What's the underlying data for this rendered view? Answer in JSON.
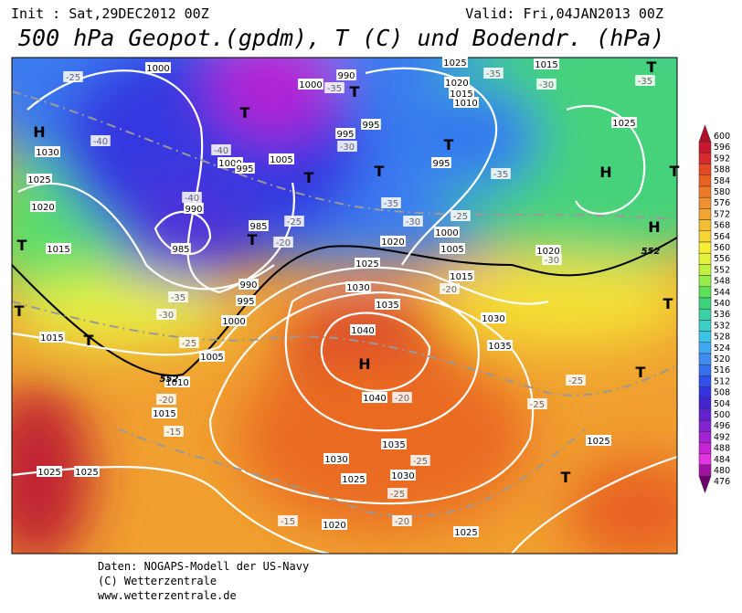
{
  "header": {
    "init": "Init : Sat,29DEC2012 00Z",
    "valid": "Valid: Fri,04JAN2013 00Z",
    "title": "500 hPa Geopot.(gpdm), T (C) und Bodendr. (hPa)"
  },
  "colorbar": {
    "levels": [
      {
        "label": "600",
        "color": "#b0102a"
      },
      {
        "label": "596",
        "color": "#c81830"
      },
      {
        "label": "592",
        "color": "#d82a2a"
      },
      {
        "label": "588",
        "color": "#e44a22"
      },
      {
        "label": "584",
        "color": "#ea6222"
      },
      {
        "label": "580",
        "color": "#ee7a28"
      },
      {
        "label": "576",
        "color": "#f09030"
      },
      {
        "label": "572",
        "color": "#f2a632"
      },
      {
        "label": "568",
        "color": "#f4be32"
      },
      {
        "label": "564",
        "color": "#f6d634"
      },
      {
        "label": "560",
        "color": "#f8ee34"
      },
      {
        "label": "556",
        "color": "#e4f23c"
      },
      {
        "label": "552",
        "color": "#c2f040"
      },
      {
        "label": "548",
        "color": "#96ec4a"
      },
      {
        "label": "544",
        "color": "#5ee05a"
      },
      {
        "label": "540",
        "color": "#3ed27a"
      },
      {
        "label": "536",
        "color": "#3ad2a4"
      },
      {
        "label": "532",
        "color": "#3ad0c8"
      },
      {
        "label": "528",
        "color": "#3cc4e6"
      },
      {
        "label": "524",
        "color": "#3eaaf2"
      },
      {
        "label": "520",
        "color": "#3e8ef2"
      },
      {
        "label": "516",
        "color": "#3470f0"
      },
      {
        "label": "512",
        "color": "#3050ee"
      },
      {
        "label": "508",
        "color": "#3232de"
      },
      {
        "label": "504",
        "color": "#4424d2"
      },
      {
        "label": "500",
        "color": "#6222d2"
      },
      {
        "label": "496",
        "color": "#8222d2"
      },
      {
        "label": "492",
        "color": "#a422d4"
      },
      {
        "label": "488",
        "color": "#c622d6"
      },
      {
        "label": "484",
        "color": "#e232e2"
      },
      {
        "label": "480",
        "color": "#a212a2"
      },
      {
        "label": "476",
        "color": "#6e006e"
      }
    ]
  },
  "map": {
    "centers": [
      "H",
      "T",
      "T",
      "T",
      "T",
      "H",
      "T",
      "T",
      "T",
      "H",
      "H",
      "T",
      "T",
      "T",
      "T",
      "T",
      "T",
      "T"
    ],
    "contour_labels": [
      "1000",
      "-25",
      "990",
      "1000",
      "-35",
      "1025",
      "1015",
      "-35",
      "-30",
      "-35",
      "1020",
      "1015",
      "1010",
      "995",
      "995",
      "-30",
      "1025",
      "1030",
      "-40",
      "-40",
      "1000",
      "995",
      "1005",
      "995",
      "-35",
      "1025",
      "-40",
      "990",
      "1020",
      "-35",
      "985",
      "-25",
      "-20",
      "-30",
      "-25",
      "1000",
      "1015",
      "985",
      "1020",
      "1005",
      "1020",
      "-30",
      "1025",
      "990",
      "1015",
      "-35",
      "995",
      "1030",
      "1035",
      "-20",
      "1030",
      "-30",
      "1000",
      "1015",
      "1040",
      "-25",
      "1035",
      "1005",
      "1010",
      "-20",
      "1040",
      "-20",
      "-25",
      "-25",
      "1015",
      "-15",
      "1035",
      "1025",
      "1030",
      "-25",
      "1025",
      "1025",
      "1025",
      "1030",
      "-25",
      "-20",
      "-15",
      "1020",
      "1025",
      "552",
      "552"
    ]
  },
  "footer": [
    "Daten: NOGAPS-Modell der US-Navy",
    "(C) Wetterzentrale",
    "www.wetterzentrale.de"
  ]
}
